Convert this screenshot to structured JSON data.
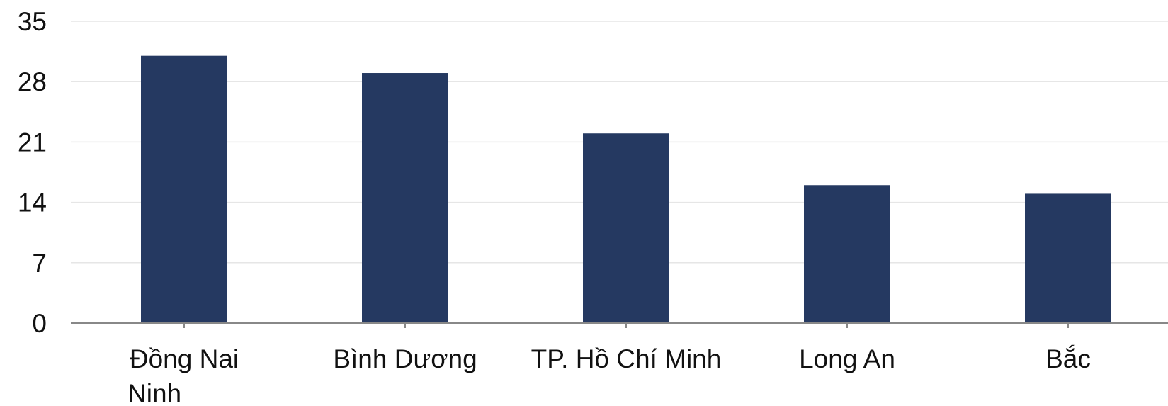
{
  "chart_data": {
    "type": "bar",
    "categories": [
      "Đồng Nai",
      "Bình Dương",
      "TP. Hồ Chí Minh",
      "Long An",
      "Bắc"
    ],
    "extra_label": "Ninh",
    "values": [
      31,
      29,
      22,
      16,
      15
    ],
    "ylim": [
      0,
      35
    ],
    "yticks": [
      0,
      7,
      14,
      21,
      28,
      35
    ],
    "ytick_labels": [
      "0",
      "7",
      "14",
      "21",
      "28",
      "35"
    ],
    "title": "",
    "xlabel": "",
    "ylabel": "",
    "grid": true,
    "bar_color": "#253961",
    "grid_color": "#e6e6e6",
    "axis_color": "#888888"
  }
}
